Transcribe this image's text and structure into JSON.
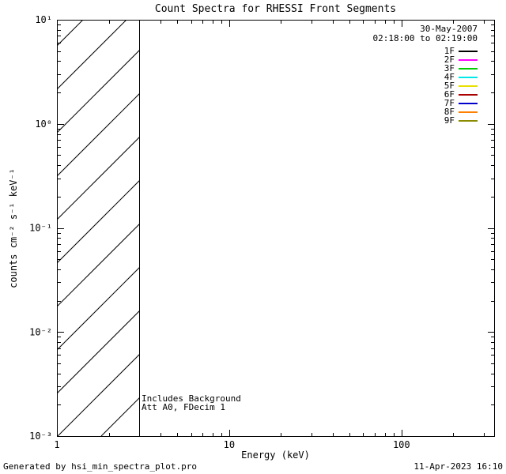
{
  "title": "Count Spectra for RHESSI Front Segments",
  "legend": {
    "date": "30-May-2007",
    "time_range": "02:18:00 to 02:19:00",
    "entries": [
      {
        "label": "1F",
        "color": "#000000"
      },
      {
        "label": "2F",
        "color": "#ff00ff"
      },
      {
        "label": "3F",
        "color": "#00cc00"
      },
      {
        "label": "4F",
        "color": "#00e8e8"
      },
      {
        "label": "5F",
        "color": "#e8e000"
      },
      {
        "label": "6F",
        "color": "#aa0000"
      },
      {
        "label": "7F",
        "color": "#0000cc"
      },
      {
        "label": "8F",
        "color": "#ff8000"
      },
      {
        "label": "9F",
        "color": "#8b8b00"
      }
    ]
  },
  "annotations": [
    "Includes Background",
    "Att A0, FDecim 1"
  ],
  "footer": {
    "left": "Generated by hsi_min_spectra_plot.pro",
    "right": "11-Apr-2023 16:10"
  },
  "chart_data": {
    "type": "line",
    "title": "Count Spectra for RHESSI Front Segments",
    "xlabel": "Energy (keV)",
    "ylabel": "counts cm⁻² s⁻¹ keV⁻¹",
    "xscale": "log",
    "yscale": "log",
    "xlim": [
      1,
      345
    ],
    "ylim": [
      0.001,
      10
    ],
    "x_ticks": [
      {
        "value": 1,
        "label": "1"
      },
      {
        "value": 10,
        "label": "10"
      },
      {
        "value": 100,
        "label": "100"
      }
    ],
    "y_ticks": [
      {
        "value": 10,
        "label": "10¹"
      },
      {
        "value": 1,
        "label": "10⁰"
      },
      {
        "value": 0.1,
        "label": "10⁻¹"
      },
      {
        "value": 0.01,
        "label": "10⁻²"
      },
      {
        "value": 0.001,
        "label": "10⁻³"
      }
    ],
    "series": [],
    "hatched_region": {
      "x_min": 1,
      "x_max": 3,
      "style": "diagonal-hatch"
    },
    "grid": false,
    "legend_position": "top-right",
    "note": "No spectra curves plotted; diagonal-hatched band covers 1-3 keV across full y-range"
  }
}
